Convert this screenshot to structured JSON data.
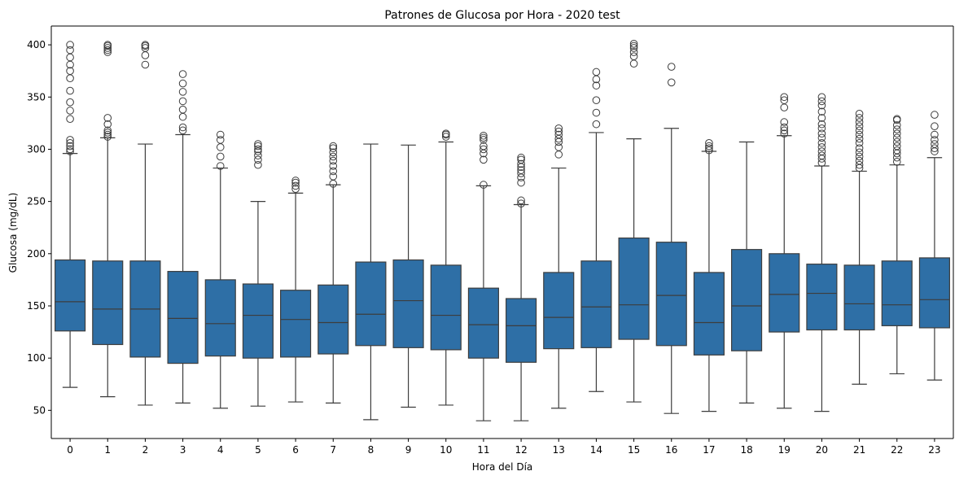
{
  "chart_data": {
    "type": "box",
    "title": "Patrones de Glucosa por Hora - 2020 test",
    "xlabel": "Hora del Día",
    "ylabel": "Glucosa (mg/dL)",
    "ylim": [
      23,
      418
    ],
    "yticks": [
      50,
      100,
      150,
      200,
      250,
      300,
      350,
      400
    ],
    "grid": false,
    "legend": "none",
    "colors": {
      "box_fill": "#2e6fa6",
      "line": "#3d3d3d",
      "background": "#ffffff"
    },
    "categories": [
      "0",
      "1",
      "2",
      "3",
      "4",
      "5",
      "6",
      "7",
      "8",
      "9",
      "10",
      "11",
      "12",
      "13",
      "14",
      "15",
      "16",
      "17",
      "18",
      "19",
      "20",
      "21",
      "22",
      "23"
    ],
    "boxes": [
      {
        "hour": "0",
        "whisker_low": 72,
        "q1": 126,
        "median": 154,
        "q3": 194,
        "whisker_high": 296,
        "outliers": [
          298,
          300,
          303,
          306,
          309,
          329,
          337,
          345,
          356,
          368,
          375,
          381,
          388,
          395,
          400
        ]
      },
      {
        "hour": "1",
        "whisker_low": 63,
        "q1": 113,
        "median": 147,
        "q3": 193,
        "whisker_high": 311,
        "outliers": [
          312,
          314,
          316,
          318,
          324,
          330,
          393,
          395,
          397,
          399,
          400
        ]
      },
      {
        "hour": "2",
        "whisker_low": 55,
        "q1": 101,
        "median": 147,
        "q3": 193,
        "whisker_high": 305,
        "outliers": [
          381,
          390,
          397,
          399,
          400
        ]
      },
      {
        "hour": "3",
        "whisker_low": 57,
        "q1": 95,
        "median": 138,
        "q3": 183,
        "whisker_high": 314,
        "outliers": [
          318,
          321,
          331,
          338,
          346,
          355,
          363,
          372
        ]
      },
      {
        "hour": "4",
        "whisker_low": 52,
        "q1": 102,
        "median": 133,
        "q3": 175,
        "whisker_high": 282,
        "outliers": [
          284,
          293,
          302,
          309,
          314
        ]
      },
      {
        "hour": "5",
        "whisker_low": 54,
        "q1": 100,
        "median": 141,
        "q3": 171,
        "whisker_high": 250,
        "outliers": [
          285,
          290,
          294,
          298,
          300,
          303,
          305
        ]
      },
      {
        "hour": "6",
        "whisker_low": 58,
        "q1": 101,
        "median": 137,
        "q3": 165,
        "whisker_high": 258,
        "outliers": [
          262,
          265,
          268,
          270
        ]
      },
      {
        "hour": "7",
        "whisker_low": 57,
        "q1": 104,
        "median": 134,
        "q3": 170,
        "whisker_high": 266,
        "outliers": [
          267,
          274,
          279,
          284,
          289,
          293,
          297,
          301,
          303
        ]
      },
      {
        "hour": "8",
        "whisker_low": 41,
        "q1": 112,
        "median": 142,
        "q3": 192,
        "whisker_high": 305,
        "outliers": []
      },
      {
        "hour": "9",
        "whisker_low": 53,
        "q1": 110,
        "median": 155,
        "q3": 194,
        "whisker_high": 304,
        "outliers": []
      },
      {
        "hour": "10",
        "whisker_low": 55,
        "q1": 108,
        "median": 141,
        "q3": 189,
        "whisker_high": 307,
        "outliers": [
          312,
          314,
          315
        ]
      },
      {
        "hour": "11",
        "whisker_low": 40,
        "q1": 100,
        "median": 132,
        "q3": 167,
        "whisker_high": 265,
        "outliers": [
          266,
          290,
          296,
          300,
          303,
          309,
          311,
          313
        ]
      },
      {
        "hour": "12",
        "whisker_low": 40,
        "q1": 96,
        "median": 131,
        "q3": 157,
        "whisker_high": 247,
        "outliers": [
          248,
          251,
          268,
          273,
          277,
          280,
          283,
          286,
          290,
          292
        ]
      },
      {
        "hour": "13",
        "whisker_low": 52,
        "q1": 109,
        "median": 139,
        "q3": 182,
        "whisker_high": 282,
        "outliers": [
          295,
          302,
          307,
          310,
          314,
          317,
          320
        ]
      },
      {
        "hour": "14",
        "whisker_low": 68,
        "q1": 110,
        "median": 149,
        "q3": 193,
        "whisker_high": 316,
        "outliers": [
          324,
          335,
          347,
          361,
          367,
          374
        ]
      },
      {
        "hour": "15",
        "whisker_low": 58,
        "q1": 118,
        "median": 151,
        "q3": 215,
        "whisker_high": 310,
        "outliers": [
          382,
          389,
          393,
          397,
          399,
          401
        ]
      },
      {
        "hour": "16",
        "whisker_low": 47,
        "q1": 112,
        "median": 160,
        "q3": 211,
        "whisker_high": 320,
        "outliers": [
          364,
          379
        ]
      },
      {
        "hour": "17",
        "whisker_low": 49,
        "q1": 103,
        "median": 134,
        "q3": 182,
        "whisker_high": 298,
        "outliers": [
          299,
          301,
          303,
          306
        ]
      },
      {
        "hour": "18",
        "whisker_low": 57,
        "q1": 107,
        "median": 150,
        "q3": 204,
        "whisker_high": 307,
        "outliers": []
      },
      {
        "hour": "19",
        "whisker_low": 52,
        "q1": 125,
        "median": 161,
        "q3": 200,
        "whisker_high": 313,
        "outliers": [
          315,
          318,
          321,
          326,
          340,
          347,
          350
        ]
      },
      {
        "hour": "20",
        "whisker_low": 49,
        "q1": 127,
        "median": 162,
        "q3": 190,
        "whisker_high": 284,
        "outliers": [
          287,
          291,
          294,
          298,
          302,
          306,
          311,
          315,
          320,
          324,
          330,
          336,
          342,
          346,
          350
        ]
      },
      {
        "hour": "21",
        "whisker_low": 75,
        "q1": 127,
        "median": 152,
        "q3": 189,
        "whisker_high": 279,
        "outliers": [
          282,
          285,
          289,
          293,
          297,
          301,
          306,
          310,
          314,
          318,
          322,
          326,
          330,
          334
        ]
      },
      {
        "hour": "22",
        "whisker_low": 85,
        "q1": 131,
        "median": 151,
        "q3": 193,
        "whisker_high": 285,
        "outliers": [
          288,
          292,
          296,
          299,
          303,
          307,
          311,
          315,
          319,
          323,
          328,
          329
        ]
      },
      {
        "hour": "23",
        "whisker_low": 79,
        "q1": 129,
        "median": 156,
        "q3": 196,
        "whisker_high": 292,
        "outliers": [
          298,
          301,
          305,
          309,
          314,
          322,
          333
        ]
      }
    ]
  }
}
